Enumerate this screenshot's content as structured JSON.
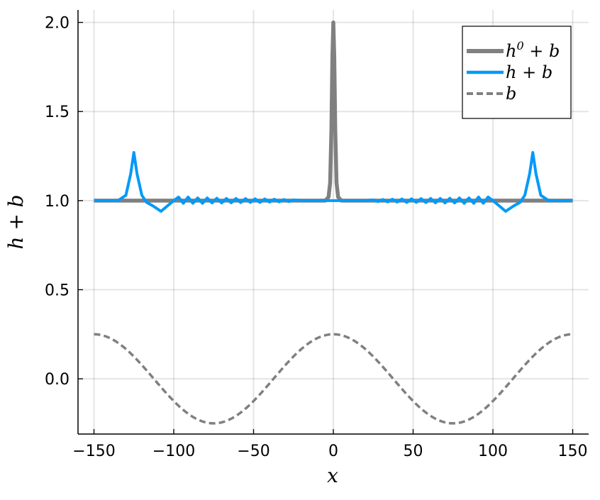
{
  "chart_data": {
    "type": "line",
    "xlabel": "x",
    "ylabel": "h + b",
    "xlim": [
      -160,
      160
    ],
    "ylim": [
      -0.31,
      2.07
    ],
    "xticks": [
      -150,
      -100,
      -50,
      0,
      50,
      100,
      150
    ],
    "xtick_labels": [
      "−150",
      "−100",
      "−50",
      "0",
      "50",
      "100",
      "150"
    ],
    "yticks": [
      0.0,
      0.5,
      1.0,
      1.5,
      2.0
    ],
    "ytick_labels": [
      "0.0",
      "0.5",
      "1.0",
      "1.5",
      "2.0"
    ],
    "grid": true,
    "legend_position": "top-right",
    "colors": {
      "h0_plus_b": "#808080",
      "h_plus_b": "#009AF9",
      "b": "#808080"
    },
    "series": [
      {
        "name": "h^0 + b",
        "legend": {
          "base": "h",
          "sup": "0",
          "rest": " + b"
        },
        "style": "solid",
        "x": [
          -150,
          -125,
          -5,
          -3,
          -2,
          -1.2,
          -0.6,
          0,
          0.6,
          1.2,
          2,
          3,
          5,
          125,
          150
        ],
        "y": [
          1.0,
          1.0,
          1.0,
          1.02,
          1.1,
          1.4,
          1.8,
          2.0,
          1.8,
          1.4,
          1.1,
          1.02,
          1.0,
          1.0,
          1.0
        ]
      },
      {
        "name": "h + b",
        "legend": {
          "base": "h",
          "sup": "",
          "rest": " + b"
        },
        "style": "solid",
        "x": [
          -150,
          -135,
          -130,
          -127,
          -125,
          -123,
          -120,
          -117,
          -113,
          -108,
          -104,
          -100,
          -97,
          -94,
          -91,
          -88,
          -85,
          -82,
          -79,
          -76,
          -73,
          -70,
          -67,
          -64,
          -61,
          -58,
          -55,
          -52,
          -49,
          -46,
          -43,
          -40,
          -37,
          -34,
          -31,
          -28,
          -25,
          -20,
          -10,
          0,
          10,
          20,
          25,
          28,
          31,
          34,
          37,
          40,
          43,
          46,
          49,
          52,
          55,
          58,
          61,
          64,
          67,
          70,
          73,
          76,
          79,
          82,
          85,
          88,
          91,
          94,
          97,
          100,
          104,
          108,
          113,
          117,
          120,
          123,
          125,
          127,
          130,
          135,
          150
        ],
        "y": [
          1.0,
          1.0,
          1.03,
          1.15,
          1.27,
          1.15,
          1.03,
          0.99,
          0.97,
          0.94,
          0.97,
          1.0,
          1.02,
          0.985,
          1.02,
          0.985,
          1.015,
          0.985,
          1.015,
          0.987,
          1.013,
          0.987,
          1.012,
          0.988,
          1.012,
          0.989,
          1.011,
          0.99,
          1.01,
          0.99,
          1.009,
          0.992,
          1.008,
          0.993,
          1.006,
          0.995,
          1.004,
          1.0,
          1.0,
          1.0,
          1.0,
          1.0,
          1.004,
          0.995,
          1.006,
          0.993,
          1.008,
          0.992,
          1.009,
          0.99,
          1.01,
          0.99,
          1.011,
          0.989,
          1.012,
          0.988,
          1.012,
          0.987,
          1.013,
          0.987,
          1.015,
          0.985,
          1.015,
          0.985,
          1.02,
          0.985,
          1.02,
          1.0,
          0.97,
          0.94,
          0.97,
          0.99,
          1.03,
          1.15,
          1.27,
          1.15,
          1.03,
          1.0,
          1.0
        ]
      },
      {
        "name": "b",
        "legend": {
          "base": "b",
          "sup": "",
          "rest": ""
        },
        "style": "dashed",
        "function": "0.25*cos(2*pi*x/150)",
        "x": [
          -150,
          -140,
          -130,
          -120,
          -110,
          -100,
          -90,
          -80,
          -75,
          -70,
          -60,
          -50,
          -40,
          -30,
          -20,
          -10,
          0,
          10,
          20,
          30,
          40,
          50,
          60,
          70,
          75,
          80,
          90,
          100,
          110,
          120,
          130,
          140,
          150
        ],
        "y": [
          0.25,
          0.229,
          0.169,
          0.077,
          -0.026,
          -0.125,
          -0.202,
          -0.245,
          -0.25,
          -0.245,
          -0.202,
          -0.125,
          -0.026,
          0.077,
          0.169,
          0.229,
          0.25,
          0.229,
          0.169,
          0.077,
          -0.026,
          -0.125,
          -0.202,
          -0.245,
          -0.25,
          -0.245,
          -0.202,
          -0.125,
          -0.026,
          0.077,
          0.169,
          0.229,
          0.25
        ]
      }
    ]
  }
}
